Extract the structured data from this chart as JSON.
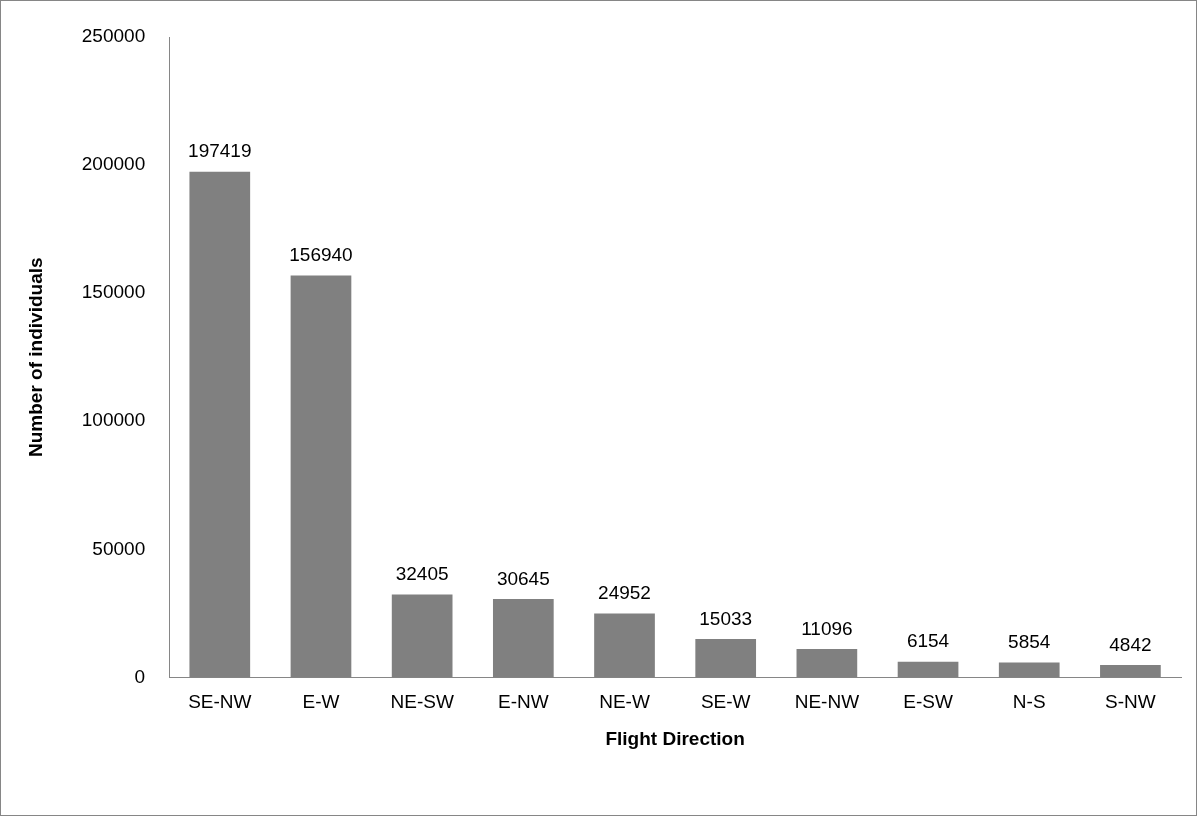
{
  "chart_data": {
    "type": "bar",
    "xlabel": "Flight Direction",
    "ylabel": "Number of individuals",
    "categories": [
      "SE-NW",
      "E-W",
      "NE-SW",
      "E-NW",
      "NE-W",
      "SE-W",
      "NE-NW",
      "E-SW",
      "N-S",
      "S-NW"
    ],
    "values": [
      197419,
      156940,
      32405,
      30645,
      24952,
      15033,
      11096,
      6154,
      5854,
      4842
    ],
    "color": "#808080",
    "ylim": [
      0,
      250000
    ],
    "yticks": [
      0,
      50000,
      100000,
      150000,
      200000,
      250000
    ],
    "grid": false,
    "legend": false,
    "data_labels": true
  }
}
